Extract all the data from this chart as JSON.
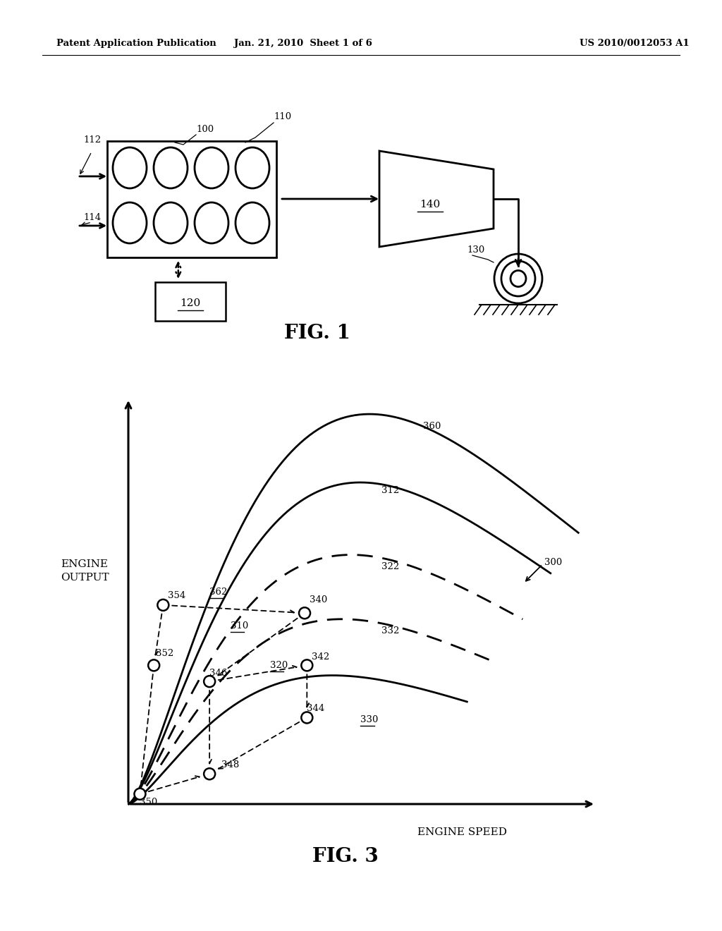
{
  "bg_color": "#ffffff",
  "header_left": "Patent Application Publication",
  "header_mid": "Jan. 21, 2010  Sheet 1 of 6",
  "header_right": "US 2010/0012053 A1",
  "fig1_label": "FIG. 1",
  "fig3_label": "FIG. 3",
  "engine_speed_label": "ENGINE SPEED",
  "engine_output_label": "ENGINE\nOUTPUT"
}
